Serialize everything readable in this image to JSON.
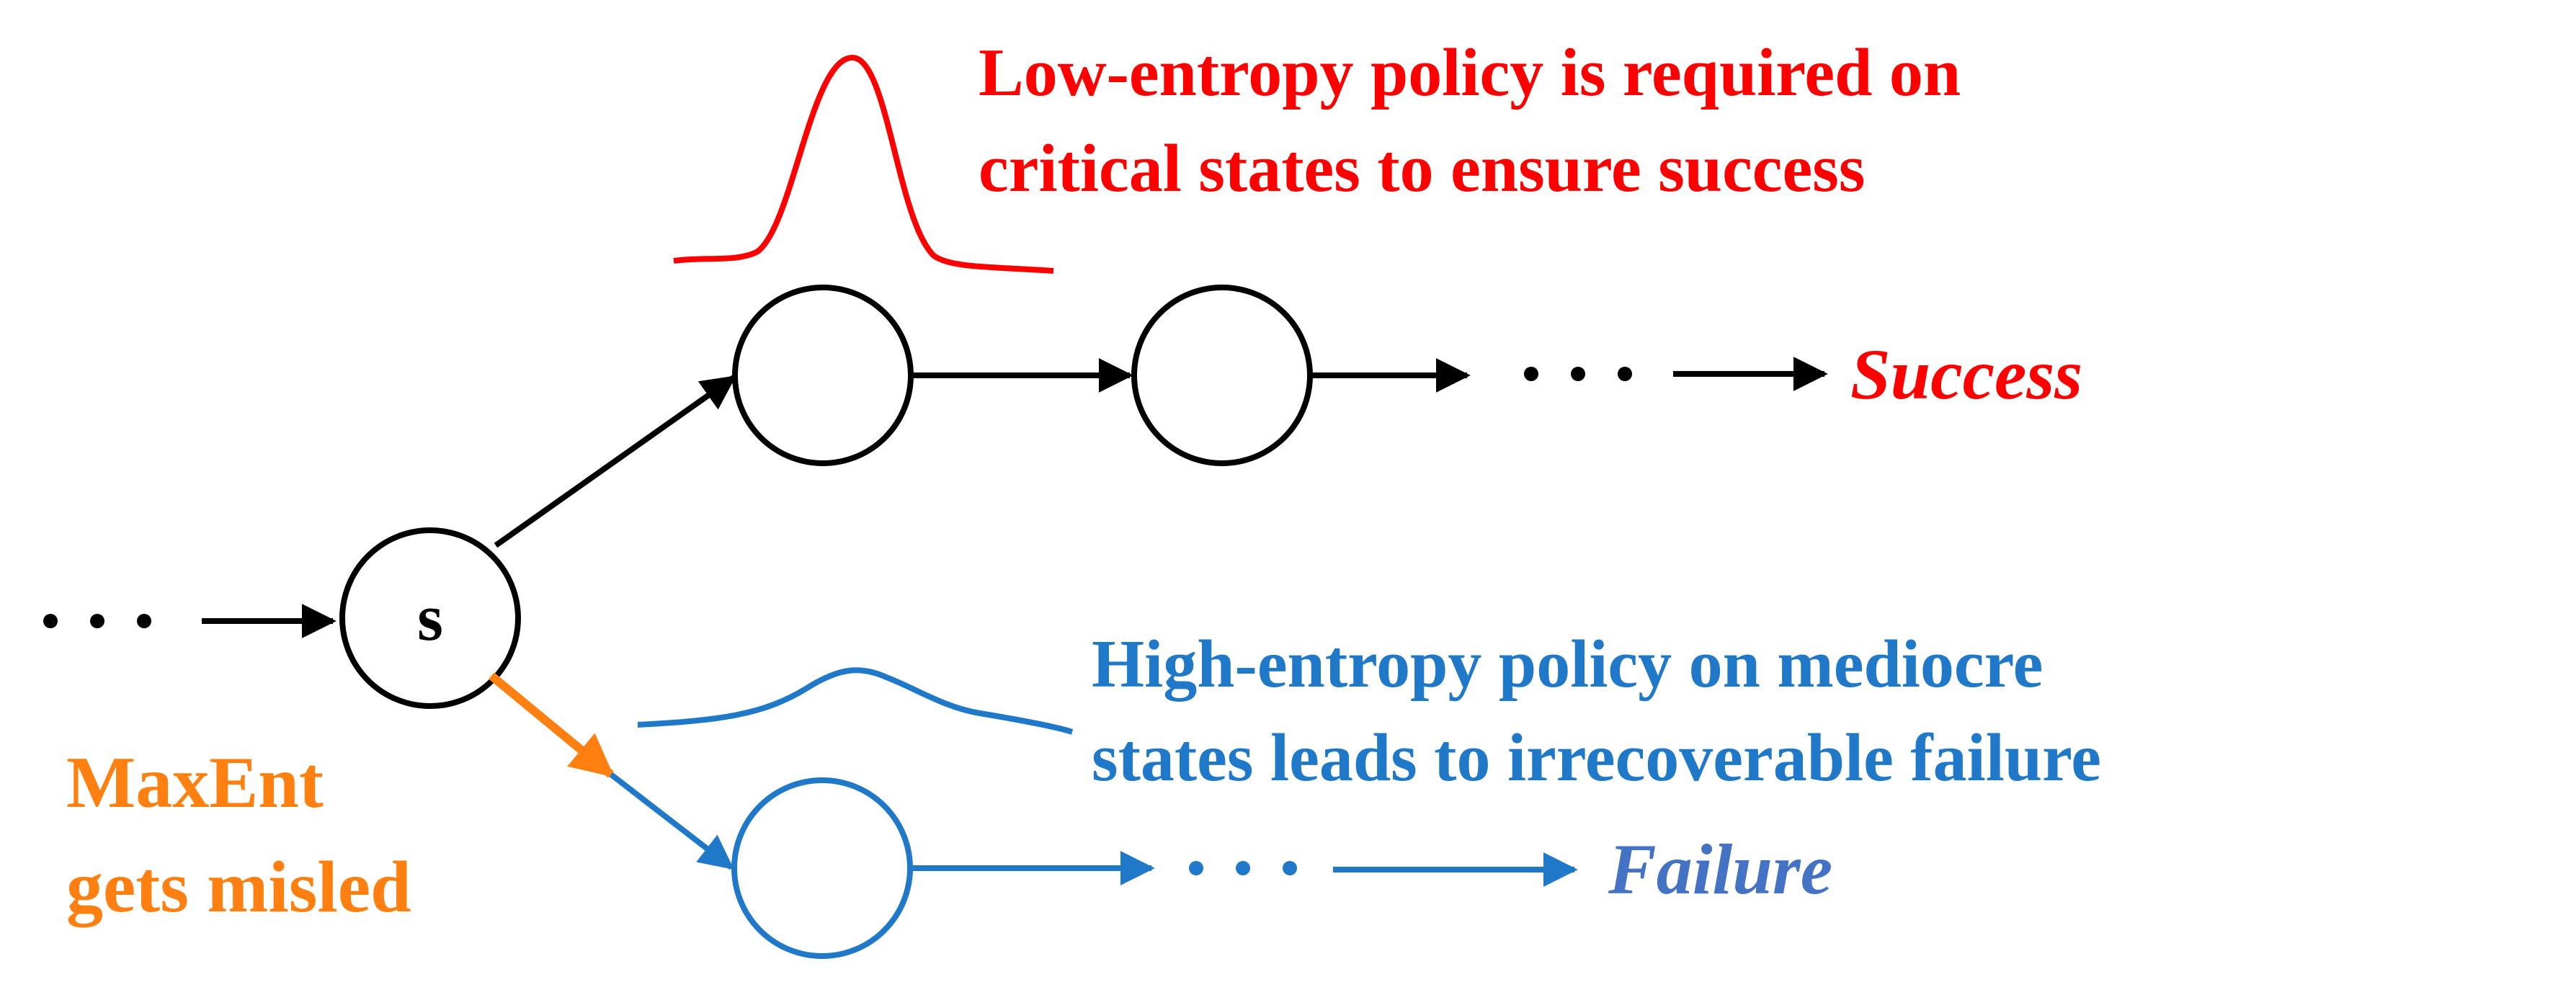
{
  "node_label_s": "s",
  "annotations": {
    "low_entropy_line1": "Low-entropy policy is required on",
    "low_entropy_line2": "critical states to ensure success",
    "high_entropy_line1": "High-entropy policy on mediocre",
    "high_entropy_line2": "states leads to irrecoverable failure",
    "maxent_line1": "MaxEnt",
    "maxent_line2": "gets misled"
  },
  "outcomes": {
    "success": "Success",
    "failure": "Failure"
  },
  "colors": {
    "black": "#000000",
    "red": "#ff0000",
    "blue": "#1f78c8",
    "orange": "#ff8010",
    "failure_text": "#4472c4"
  }
}
